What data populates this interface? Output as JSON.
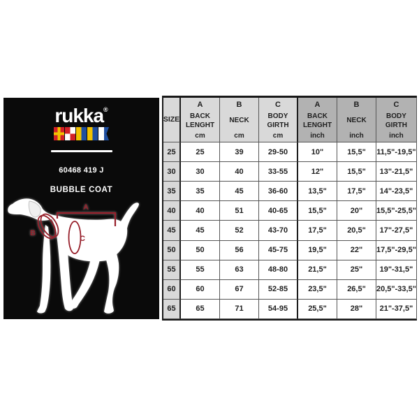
{
  "panel": {
    "logo_text": "rukka",
    "registered_mark": "®",
    "flags": [
      "signal-flag-r",
      "signal-flag-u",
      "signal-flag-k",
      "signal-flag-k",
      "signal-flag-a"
    ],
    "product_code": "60468 419 J",
    "product_name": "BUBBLE COAT",
    "marks": {
      "a": "A",
      "b": "B",
      "c": "C"
    }
  },
  "table": {
    "columns": [
      {
        "letter": "",
        "name": "SIZE",
        "unit": "",
        "tone": "light"
      },
      {
        "letter": "A",
        "name": "BACK LENGHT",
        "unit": "cm",
        "tone": "light"
      },
      {
        "letter": "B",
        "name": "NECK",
        "unit": "cm",
        "tone": "light"
      },
      {
        "letter": "C",
        "name": "BODY GIRTH",
        "unit": "cm",
        "tone": "light"
      },
      {
        "letter": "A",
        "name": "BACK LENGHT",
        "unit": "inch",
        "tone": "dark"
      },
      {
        "letter": "B",
        "name": "NECK",
        "unit": "inch",
        "tone": "dark"
      },
      {
        "letter": "C",
        "name": "BODY GIRTH",
        "unit": "inch",
        "tone": "dark"
      }
    ],
    "rows": [
      {
        "size": "25",
        "values": [
          "25",
          "39",
          "29-50",
          "10\"",
          "15,5\"",
          "11,5\"-19,5\""
        ]
      },
      {
        "size": "30",
        "values": [
          "30",
          "40",
          "33-55",
          "12\"",
          "15,5\"",
          "13\"-21,5\""
        ]
      },
      {
        "size": "35",
        "values": [
          "35",
          "45",
          "36-60",
          "13,5\"",
          "17,5\"",
          "14\"-23,5\""
        ]
      },
      {
        "size": "40",
        "values": [
          "40",
          "51",
          "40-65",
          "15,5\"",
          "20\"",
          "15,5\"-25,5\""
        ]
      },
      {
        "size": "45",
        "values": [
          "45",
          "52",
          "43-70",
          "17,5\"",
          "20,5\"",
          "17\"-27,5\""
        ]
      },
      {
        "size": "50",
        "values": [
          "50",
          "56",
          "45-75",
          "19,5\"",
          "22\"",
          "17,5\"-29,5\""
        ]
      },
      {
        "size": "55",
        "values": [
          "55",
          "63",
          "48-80",
          "21,5\"",
          "25\"",
          "19\"-31,5\""
        ]
      },
      {
        "size": "60",
        "values": [
          "60",
          "67",
          "52-85",
          "23,5\"",
          "26,5\"",
          "20,5\"-33,5\""
        ]
      },
      {
        "size": "65",
        "values": [
          "65",
          "71",
          "54-95",
          "25,5\"",
          "28\"",
          "21\"-37,5\""
        ]
      }
    ]
  },
  "colors": {
    "accent_red": "#97202b",
    "header_light": "#d9d9d9",
    "header_dark": "#b2b2b2",
    "panel_bg": "#0a0a0a"
  }
}
